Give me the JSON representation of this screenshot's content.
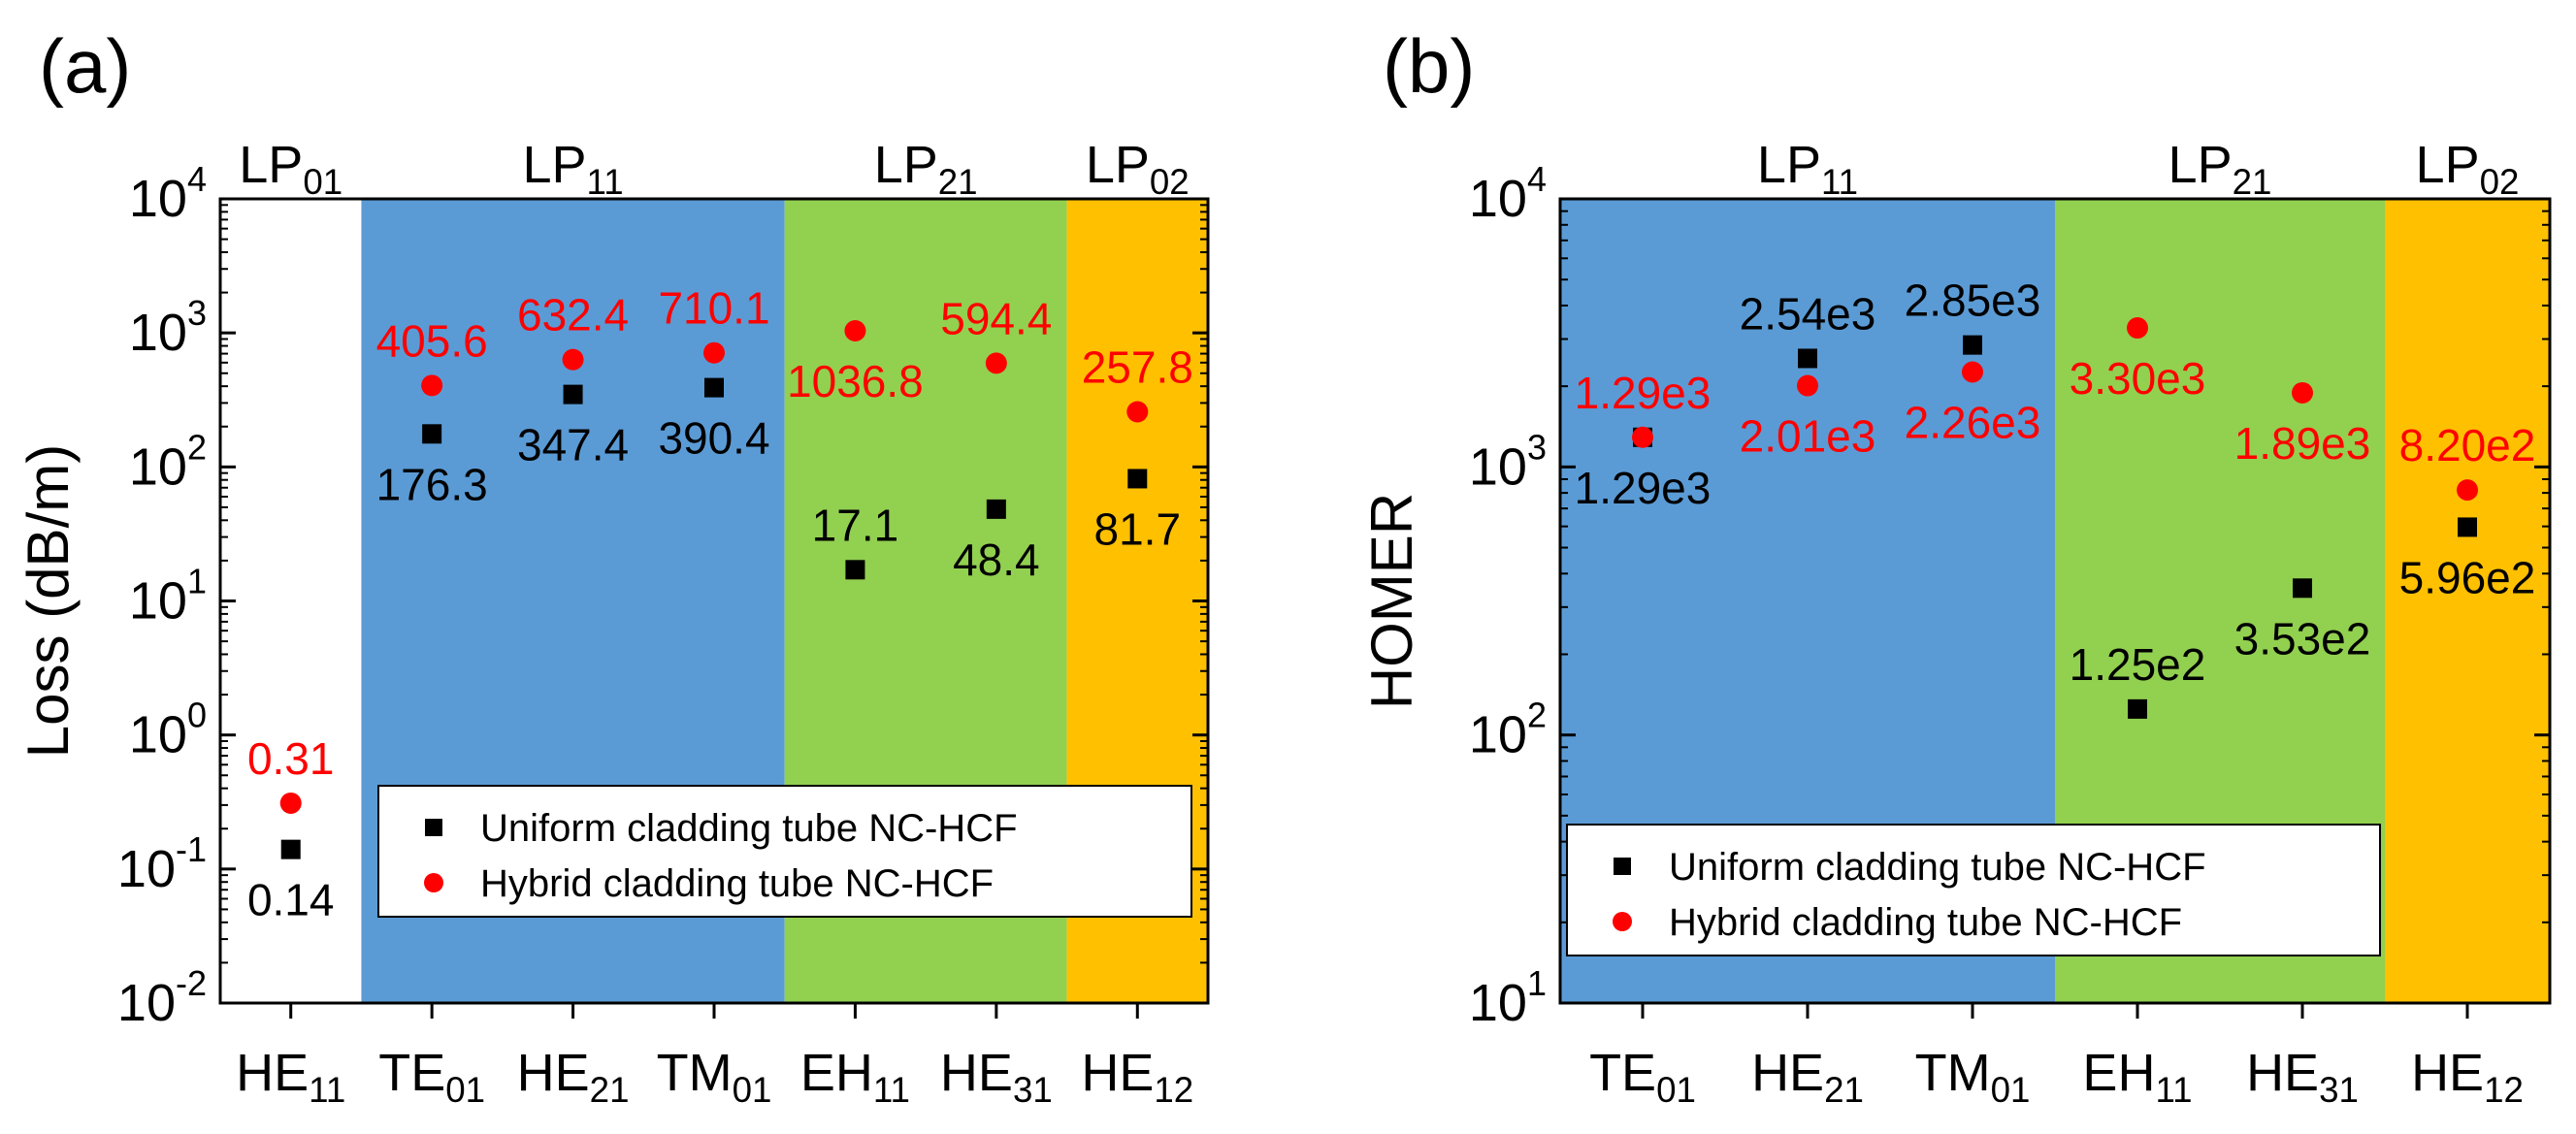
{
  "colors": {
    "uniform": "#000000",
    "hybrid": "#ff0000",
    "bg_white": "#ffffff",
    "bg_lp11": "#5b9bd5",
    "bg_lp21": "#92d050",
    "bg_lp02": "#ffc000"
  },
  "legend": {
    "uniform": "Uniform cladding tube NC-HCF",
    "hybrid": "Hybrid cladding tube NC-HCF"
  },
  "chart_data": [
    {
      "panel_label": "(a)",
      "type": "scatter",
      "yscale": "log",
      "ylabel": "Loss (dB/m)",
      "ylim_exp": [
        -2,
        4
      ],
      "legend_placement": "bottom-right",
      "categories": [
        {
          "base": "HE",
          "sub": "11"
        },
        {
          "base": "TE",
          "sub": "01"
        },
        {
          "base": "HE",
          "sub": "21"
        },
        {
          "base": "TM",
          "sub": "01"
        },
        {
          "base": "EH",
          "sub": "11"
        },
        {
          "base": "HE",
          "sub": "31"
        },
        {
          "base": "HE",
          "sub": "12"
        }
      ],
      "groups": [
        {
          "base": "LP",
          "sub": "01",
          "from": 0,
          "to": 0,
          "color": "bg_white"
        },
        {
          "base": "LP",
          "sub": "11",
          "from": 1,
          "to": 3,
          "color": "bg_lp11"
        },
        {
          "base": "LP",
          "sub": "21",
          "from": 4,
          "to": 5,
          "color": "bg_lp21"
        },
        {
          "base": "LP",
          "sub": "02",
          "from": 6,
          "to": 6,
          "color": "bg_lp02"
        }
      ],
      "series": [
        {
          "key": "uniform",
          "marker": "square",
          "values": [
            0.14,
            176.3,
            347.4,
            390.4,
            17.1,
            48.4,
            81.7
          ],
          "labels": [
            "0.14",
            "176.3",
            "347.4",
            "390.4",
            "17.1",
            "48.4",
            "81.7"
          ],
          "label_pos": [
            "below",
            "below",
            "below",
            "below",
            "above",
            "below",
            "below"
          ]
        },
        {
          "key": "hybrid",
          "marker": "circle",
          "values": [
            0.31,
            405.6,
            632.4,
            710.1,
            1036.8,
            594.4,
            257.8
          ],
          "labels": [
            "0.31",
            "405.6",
            "632.4",
            "710.1",
            "1036.8",
            "594.4",
            "257.8"
          ],
          "label_pos": [
            "above",
            "above",
            "above",
            "above",
            "below",
            "above",
            "above"
          ]
        }
      ]
    },
    {
      "panel_label": "(b)",
      "type": "scatter",
      "yscale": "log",
      "ylabel": "HOMER",
      "ylim_exp": [
        1,
        4
      ],
      "legend_placement": "bottom-left",
      "categories": [
        {
          "base": "TE",
          "sub": "01"
        },
        {
          "base": "HE",
          "sub": "21"
        },
        {
          "base": "TM",
          "sub": "01"
        },
        {
          "base": "EH",
          "sub": "11"
        },
        {
          "base": "HE",
          "sub": "31"
        },
        {
          "base": "HE",
          "sub": "12"
        }
      ],
      "groups": [
        {
          "base": "LP",
          "sub": "11",
          "from": 0,
          "to": 2,
          "color": "bg_lp11"
        },
        {
          "base": "LP",
          "sub": "21",
          "from": 3,
          "to": 4,
          "color": "bg_lp21"
        },
        {
          "base": "LP",
          "sub": "02",
          "from": 5,
          "to": 5,
          "color": "bg_lp02"
        }
      ],
      "series": [
        {
          "key": "uniform",
          "marker": "square",
          "values": [
            1290,
            2540,
            2850,
            125,
            353,
            596
          ],
          "labels": [
            "1.29e3",
            "2.54e3",
            "2.85e3",
            "1.25e2",
            "3.53e2",
            "5.96e2"
          ],
          "label_pos": [
            "below",
            "above",
            "above",
            "above",
            "below",
            "below"
          ]
        },
        {
          "key": "hybrid",
          "marker": "circle",
          "values": [
            1290,
            2010,
            2260,
            3300,
            1890,
            820
          ],
          "labels": [
            "1.29e3",
            "2.01e3",
            "2.26e3",
            "3.30e3",
            "1.89e3",
            "8.20e2"
          ],
          "label_pos": [
            "above",
            "below",
            "below",
            "below",
            "below",
            "above"
          ]
        }
      ]
    }
  ]
}
